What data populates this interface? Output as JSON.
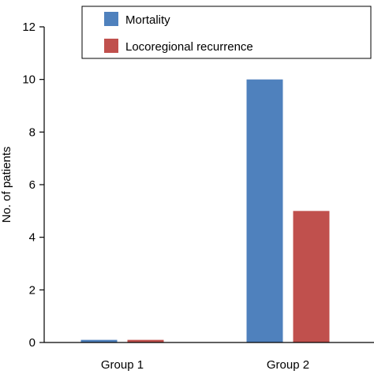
{
  "chart_data": {
    "type": "bar",
    "title": "",
    "xlabel": "",
    "ylabel": "No. of patients",
    "ylim": [
      0,
      12
    ],
    "yticks": [
      0,
      2,
      4,
      6,
      8,
      10,
      12
    ],
    "categories": [
      "Group 1",
      "Group 2"
    ],
    "series": [
      {
        "name": "Mortality",
        "color": "#4f81bd",
        "values": [
          0.1,
          10
        ]
      },
      {
        "name": "Locoregional recurrence",
        "color": "#c0504d",
        "values": [
          0.1,
          5
        ]
      }
    ],
    "grid": false,
    "legend_position": "top-right"
  }
}
